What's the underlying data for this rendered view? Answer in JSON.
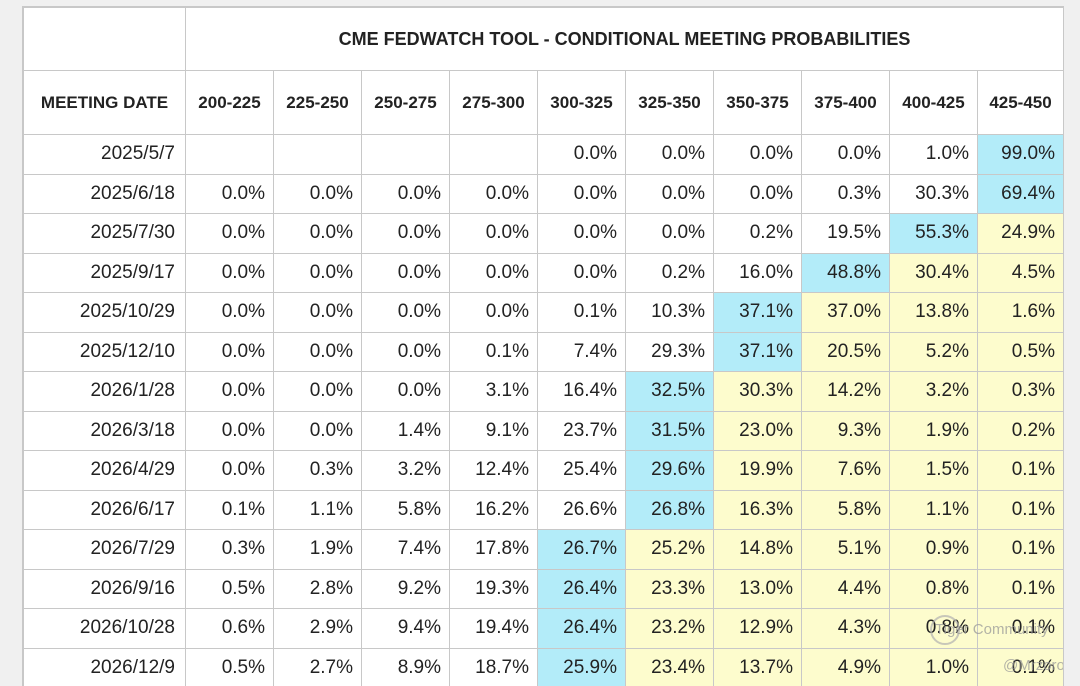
{
  "chart_data": {
    "type": "table",
    "title": "CME FEDWATCH TOOL - CONDITIONAL MEETING PROBABILITIES",
    "first_column_header": "MEETING DATE",
    "columns": [
      "200-225",
      "225-250",
      "250-275",
      "275-300",
      "300-325",
      "325-350",
      "350-375",
      "375-400",
      "400-425",
      "425-450"
    ],
    "rows": [
      {
        "date": "2025/5/7",
        "values": [
          "",
          "",
          "",
          "",
          "0.0%",
          "0.0%",
          "0.0%",
          "0.0%",
          "1.0%",
          "99.0%"
        ],
        "shading": [
          "",
          "",
          "",
          "",
          "",
          "",
          "",
          "",
          "",
          "c"
        ]
      },
      {
        "date": "2025/6/18",
        "values": [
          "0.0%",
          "0.0%",
          "0.0%",
          "0.0%",
          "0.0%",
          "0.0%",
          "0.0%",
          "0.3%",
          "30.3%",
          "69.4%"
        ],
        "shading": [
          "",
          "",
          "",
          "",
          "",
          "",
          "",
          "",
          "",
          "c"
        ]
      },
      {
        "date": "2025/7/30",
        "values": [
          "0.0%",
          "0.0%",
          "0.0%",
          "0.0%",
          "0.0%",
          "0.0%",
          "0.2%",
          "19.5%",
          "55.3%",
          "24.9%"
        ],
        "shading": [
          "",
          "",
          "",
          "",
          "",
          "",
          "",
          "",
          "c",
          "y"
        ]
      },
      {
        "date": "2025/9/17",
        "values": [
          "0.0%",
          "0.0%",
          "0.0%",
          "0.0%",
          "0.0%",
          "0.2%",
          "16.0%",
          "48.8%",
          "30.4%",
          "4.5%"
        ],
        "shading": [
          "",
          "",
          "",
          "",
          "",
          "",
          "",
          "c",
          "y",
          "y"
        ]
      },
      {
        "date": "2025/10/29",
        "values": [
          "0.0%",
          "0.0%",
          "0.0%",
          "0.0%",
          "0.1%",
          "10.3%",
          "37.1%",
          "37.0%",
          "13.8%",
          "1.6%"
        ],
        "shading": [
          "",
          "",
          "",
          "",
          "",
          "",
          "c",
          "y",
          "y",
          "y"
        ]
      },
      {
        "date": "2025/12/10",
        "values": [
          "0.0%",
          "0.0%",
          "0.0%",
          "0.1%",
          "7.4%",
          "29.3%",
          "37.1%",
          "20.5%",
          "5.2%",
          "0.5%"
        ],
        "shading": [
          "",
          "",
          "",
          "",
          "",
          "",
          "c",
          "y",
          "y",
          "y"
        ]
      },
      {
        "date": "2026/1/28",
        "values": [
          "0.0%",
          "0.0%",
          "0.0%",
          "3.1%",
          "16.4%",
          "32.5%",
          "30.3%",
          "14.2%",
          "3.2%",
          "0.3%"
        ],
        "shading": [
          "",
          "",
          "",
          "",
          "",
          "c",
          "y",
          "y",
          "y",
          "y"
        ]
      },
      {
        "date": "2026/3/18",
        "values": [
          "0.0%",
          "0.0%",
          "1.4%",
          "9.1%",
          "23.7%",
          "31.5%",
          "23.0%",
          "9.3%",
          "1.9%",
          "0.2%"
        ],
        "shading": [
          "",
          "",
          "",
          "",
          "",
          "c",
          "y",
          "y",
          "y",
          "y"
        ]
      },
      {
        "date": "2026/4/29",
        "values": [
          "0.0%",
          "0.3%",
          "3.2%",
          "12.4%",
          "25.4%",
          "29.6%",
          "19.9%",
          "7.6%",
          "1.5%",
          "0.1%"
        ],
        "shading": [
          "",
          "",
          "",
          "",
          "",
          "c",
          "y",
          "y",
          "y",
          "y"
        ]
      },
      {
        "date": "2026/6/17",
        "values": [
          "0.1%",
          "1.1%",
          "5.8%",
          "16.2%",
          "26.6%",
          "26.8%",
          "16.3%",
          "5.8%",
          "1.1%",
          "0.1%"
        ],
        "shading": [
          "",
          "",
          "",
          "",
          "",
          "c",
          "y",
          "y",
          "y",
          "y"
        ]
      },
      {
        "date": "2026/7/29",
        "values": [
          "0.3%",
          "1.9%",
          "7.4%",
          "17.8%",
          "26.7%",
          "25.2%",
          "14.8%",
          "5.1%",
          "0.9%",
          "0.1%"
        ],
        "shading": [
          "",
          "",
          "",
          "",
          "c",
          "y",
          "y",
          "y",
          "y",
          "y"
        ]
      },
      {
        "date": "2026/9/16",
        "values": [
          "0.5%",
          "2.8%",
          "9.2%",
          "19.3%",
          "26.4%",
          "23.3%",
          "13.0%",
          "4.4%",
          "0.8%",
          "0.1%"
        ],
        "shading": [
          "",
          "",
          "",
          "",
          "c",
          "y",
          "y",
          "y",
          "y",
          "y"
        ]
      },
      {
        "date": "2026/10/28",
        "values": [
          "0.6%",
          "2.9%",
          "9.4%",
          "19.4%",
          "26.4%",
          "23.2%",
          "12.9%",
          "4.3%",
          "0.8%",
          "0.1%"
        ],
        "shading": [
          "",
          "",
          "",
          "",
          "c",
          "y",
          "y",
          "y",
          "y",
          "y"
        ]
      },
      {
        "date": "2026/12/9",
        "values": [
          "0.5%",
          "2.7%",
          "8.9%",
          "18.7%",
          "25.9%",
          "23.4%",
          "13.7%",
          "4.9%",
          "1.0%",
          "0.1%"
        ],
        "shading": [
          "",
          "",
          "",
          "",
          "c",
          "y",
          "y",
          "y",
          "y",
          "y"
        ]
      }
    ],
    "colors": {
      "highest_probability": "#b3ecf9",
      "above_current": "#fdfccd",
      "border": "#c8c8c8"
    }
  },
  "watermark": {
    "line1": "Tiger Community",
    "line2": "@Mrzoro"
  }
}
